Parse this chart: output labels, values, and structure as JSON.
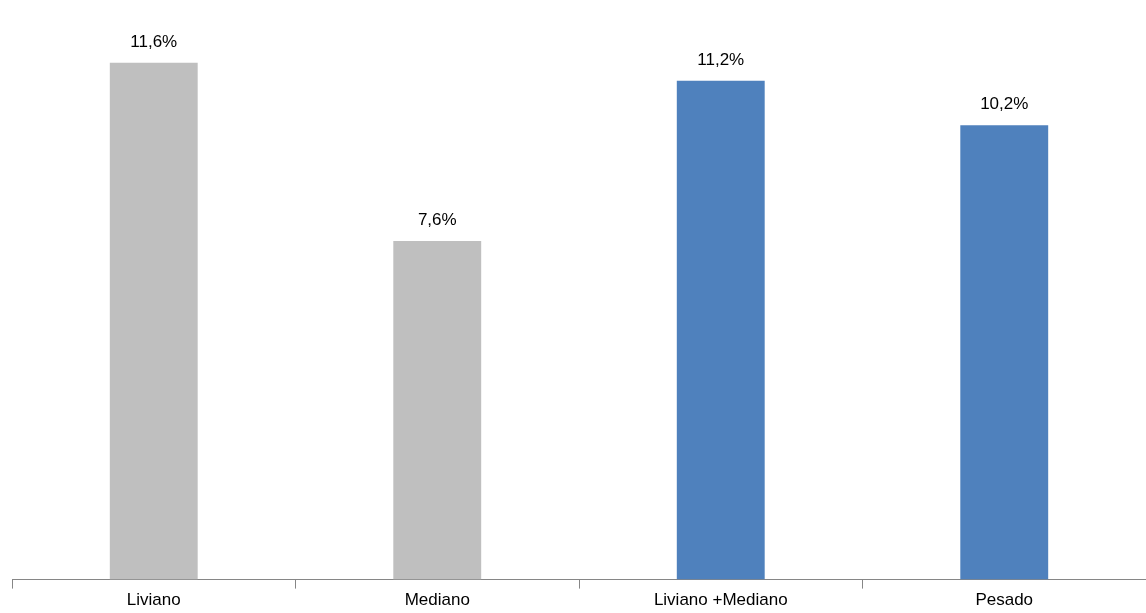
{
  "chart_data": {
    "type": "bar",
    "categories": [
      "Liviano",
      "Mediano",
      "Liviano +Mediano",
      "Pesado"
    ],
    "values": [
      11.6,
      7.6,
      11.2,
      10.2
    ],
    "colors": [
      "#bfbfbf",
      "#bfbfbf",
      "#4f81bd",
      "#4f81bd"
    ],
    "value_labels": [
      "11,6%",
      "7,6%",
      "11,2%",
      "10,2%"
    ],
    "legend": false
  }
}
